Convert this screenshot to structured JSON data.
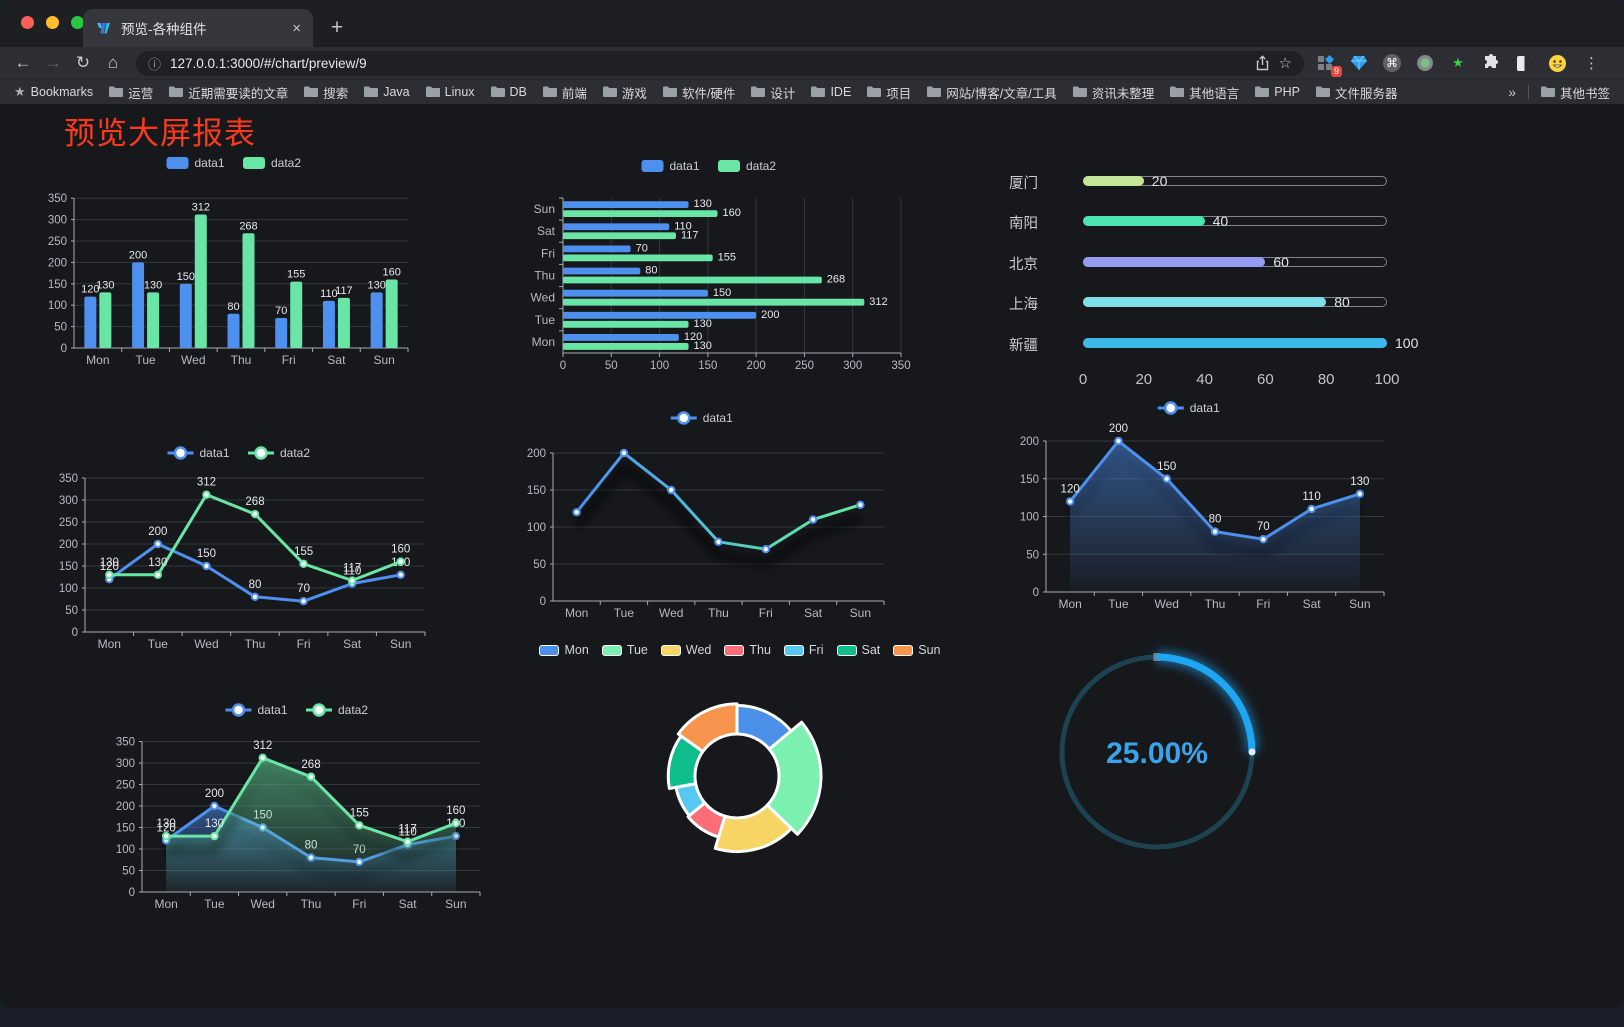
{
  "browser": {
    "window_controls": {
      "close_color": "#ff5f57",
      "minimize_color": "#febc2e",
      "zoom_color": "#28c840"
    },
    "tab": {
      "title": "预览-各种组件",
      "close_glyph": "×",
      "new_tab_glyph": "+"
    },
    "nav": {
      "back_glyph": "←",
      "forward_glyph": "→",
      "reload_glyph": "↻",
      "home_glyph": "⌂"
    },
    "address": {
      "info_glyph": "ⓘ",
      "url": "127.0.0.1:3000/#/chart/preview/9",
      "star_glyph": "☆"
    },
    "extensions": {
      "badge": "9",
      "command_glyph": "⌘",
      "green_star_glyph": "★",
      "menu_glyph": "⋮"
    },
    "bookmarks": {
      "star_glyph": "★",
      "label": "Bookmarks",
      "folders": [
        "运营",
        "近期需要读的文章",
        "搜索",
        "Java",
        "Linux",
        "DB",
        "前端",
        "游戏",
        "软件/硬件",
        "设计",
        "IDE",
        "项目",
        "网站/博客/文章/工具",
        "资讯未整理",
        "其他语言",
        "PHP",
        "文件服务器"
      ],
      "overflow_glyph": "»",
      "other_label": "其他书签"
    }
  },
  "page": {
    "title": "预览大屏报表",
    "title_color": "#fa3a1c",
    "background": "#17181c"
  },
  "chart_data": [
    {
      "id": "grouped-bar",
      "type": "bar",
      "categories": [
        "Mon",
        "Tue",
        "Wed",
        "Thu",
        "Fri",
        "Sat",
        "Sun"
      ],
      "series": [
        {
          "name": "data1",
          "color": "#4d90ee",
          "values": [
            120,
            200,
            150,
            80,
            70,
            110,
            130
          ]
        },
        {
          "name": "data2",
          "color": "#69e6a6",
          "values": [
            130,
            130,
            312,
            268,
            155,
            117,
            160
          ]
        }
      ],
      "ylim": [
        0,
        350
      ],
      "ystep": 50,
      "labels": true,
      "legend_position": "top",
      "grid": true
    },
    {
      "id": "horizontal-bar",
      "type": "hbar",
      "categories": [
        "Sun",
        "Sat",
        "Fri",
        "Thu",
        "Wed",
        "Tue",
        "Mon"
      ],
      "series": [
        {
          "name": "data1",
          "color": "#4d90ee",
          "values": [
            130,
            110,
            70,
            80,
            150,
            200,
            120
          ]
        },
        {
          "name": "data2",
          "color": "#69e6a6",
          "values": [
            160,
            117,
            155,
            268,
            312,
            130,
            130
          ]
        }
      ],
      "xlim": [
        0,
        350
      ],
      "xstep": 50,
      "labels": true,
      "legend_position": "top",
      "grid": true
    },
    {
      "id": "progress-bars",
      "type": "progress",
      "rows": [
        {
          "label": "厦门",
          "value": 20,
          "color": "#c3e796"
        },
        {
          "label": "南阳",
          "value": 40,
          "color": "#4be5af"
        },
        {
          "label": "北京",
          "value": 60,
          "color": "#949bf0"
        },
        {
          "label": "上海",
          "value": 80,
          "color": "#7fdfe8"
        },
        {
          "label": "新疆",
          "value": 100,
          "color": "#3cb9e8"
        }
      ],
      "xlim": [
        0,
        100
      ],
      "xticks": [
        0,
        20,
        40,
        60,
        80,
        100
      ]
    },
    {
      "id": "line-two-series",
      "type": "line",
      "categories": [
        "Mon",
        "Tue",
        "Wed",
        "Thu",
        "Fri",
        "Sat",
        "Sun"
      ],
      "series": [
        {
          "name": "data1",
          "color": "#4d90ee",
          "values": [
            120,
            200,
            150,
            80,
            70,
            110,
            130
          ]
        },
        {
          "name": "data2",
          "color": "#69e6a6",
          "values": [
            130,
            130,
            312,
            268,
            155,
            117,
            160
          ]
        }
      ],
      "ylim": [
        0,
        350
      ],
      "ystep": 50,
      "labels": true,
      "legend_position": "top",
      "grid": true
    },
    {
      "id": "line-gradient-shadow",
      "type": "line",
      "categories": [
        "Mon",
        "Tue",
        "Wed",
        "Thu",
        "Fri",
        "Sat",
        "Sun"
      ],
      "series": [
        {
          "name": "data1",
          "color": "#4d90ee",
          "marker_color": "#4a8ff0",
          "stroke_gradient": [
            "#4a8ff0",
            "#4fb4e9",
            "#55d8b0",
            "#67e8a3"
          ],
          "values": [
            120,
            200,
            150,
            80,
            70,
            110,
            130
          ]
        }
      ],
      "ylim": [
        0,
        200
      ],
      "ystep": 50,
      "labels": false,
      "shadow": true,
      "legend_position": "top",
      "grid": true
    },
    {
      "id": "line-area",
      "type": "line",
      "categories": [
        "Mon",
        "Tue",
        "Wed",
        "Thu",
        "Fri",
        "Sat",
        "Sun"
      ],
      "series": [
        {
          "name": "data1",
          "color": "#4d90ee",
          "area": true,
          "values": [
            120,
            200,
            150,
            80,
            70,
            110,
            130
          ]
        }
      ],
      "ylim": [
        0,
        200
      ],
      "ystep": 50,
      "labels": true,
      "shadow": true,
      "legend_position": "top",
      "grid": true
    },
    {
      "id": "line-two-area",
      "type": "line",
      "categories": [
        "Mon",
        "Tue",
        "Wed",
        "Thu",
        "Fri",
        "Sat",
        "Sun"
      ],
      "series": [
        {
          "name": "data1",
          "color": "#4d90ee",
          "area": true,
          "values": [
            120,
            200,
            150,
            80,
            70,
            110,
            130
          ]
        },
        {
          "name": "data2",
          "color": "#69e6a6",
          "area": true,
          "values": [
            130,
            130,
            312,
            268,
            155,
            117,
            160
          ]
        }
      ],
      "ylim": [
        0,
        350
      ],
      "ystep": 50,
      "labels": true,
      "shadow": true,
      "legend_position": "top",
      "grid": true
    },
    {
      "id": "rose-pie",
      "type": "pie",
      "rose": true,
      "legend_position": "top",
      "categories": [
        "Mon",
        "Tue",
        "Wed",
        "Thu",
        "Fri",
        "Sat",
        "Sun"
      ],
      "values": [
        120,
        200,
        150,
        80,
        70,
        110,
        130
      ],
      "colors": [
        "#4a90e8",
        "#7cf0b1",
        "#f7d564",
        "#fb6e78",
        "#57c8f2",
        "#0dbd8c",
        "#f7944e"
      ]
    },
    {
      "id": "gauge-percent",
      "type": "gauge",
      "percent": 25,
      "value_label": "25.00%",
      "arc_color": "#1ea6f3",
      "track_color": "#1d4351",
      "text_color": "#3ba3ea"
    }
  ]
}
